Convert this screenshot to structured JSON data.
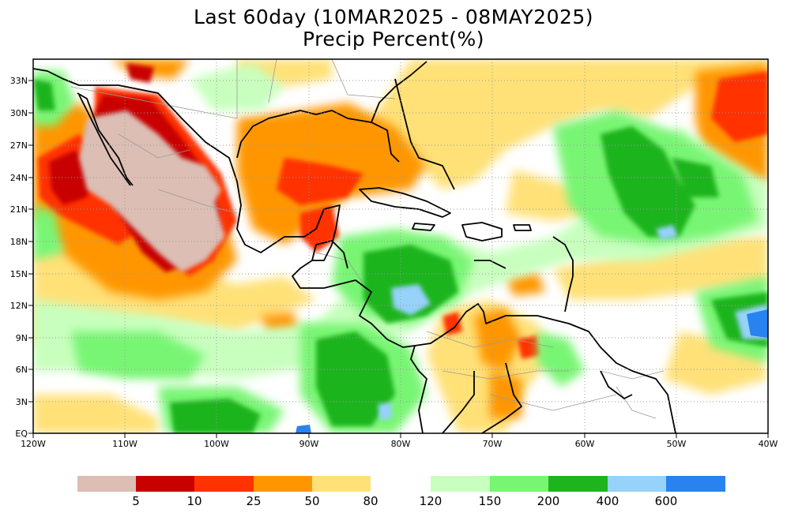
{
  "title": {
    "line1": "Last 60day (10MAR2025 - 08MAY2025)",
    "line2": "Precip Percent(%)"
  },
  "axes": {
    "lat_labels": [
      "33N",
      "30N",
      "27N",
      "24N",
      "21N",
      "18N",
      "15N",
      "12N",
      "9N",
      "6N",
      "3N",
      "EQ"
    ],
    "lon_labels": [
      "120W",
      "110W",
      "100W",
      "90W",
      "80W",
      "70W",
      "60W",
      "50W",
      "40W"
    ]
  },
  "colorbar": {
    "dry_colors": [
      "#dcbeb4",
      "#c80000",
      "#ff3200",
      "#ff9600",
      "#ffe178"
    ],
    "dry_labels": [
      "5",
      "10",
      "25",
      "50",
      "80"
    ],
    "wet_colors": [
      "#c8ffbe",
      "#78f573",
      "#1eb41e",
      "#96d2fa",
      "#2882f0"
    ],
    "wet_labels": [
      "120",
      "150",
      "200",
      "400",
      "600"
    ]
  },
  "palette": {
    "frame": "#000000",
    "land_border": "#000000",
    "state_border": "#9a9a9a",
    "grid": "#9a9a9a"
  }
}
